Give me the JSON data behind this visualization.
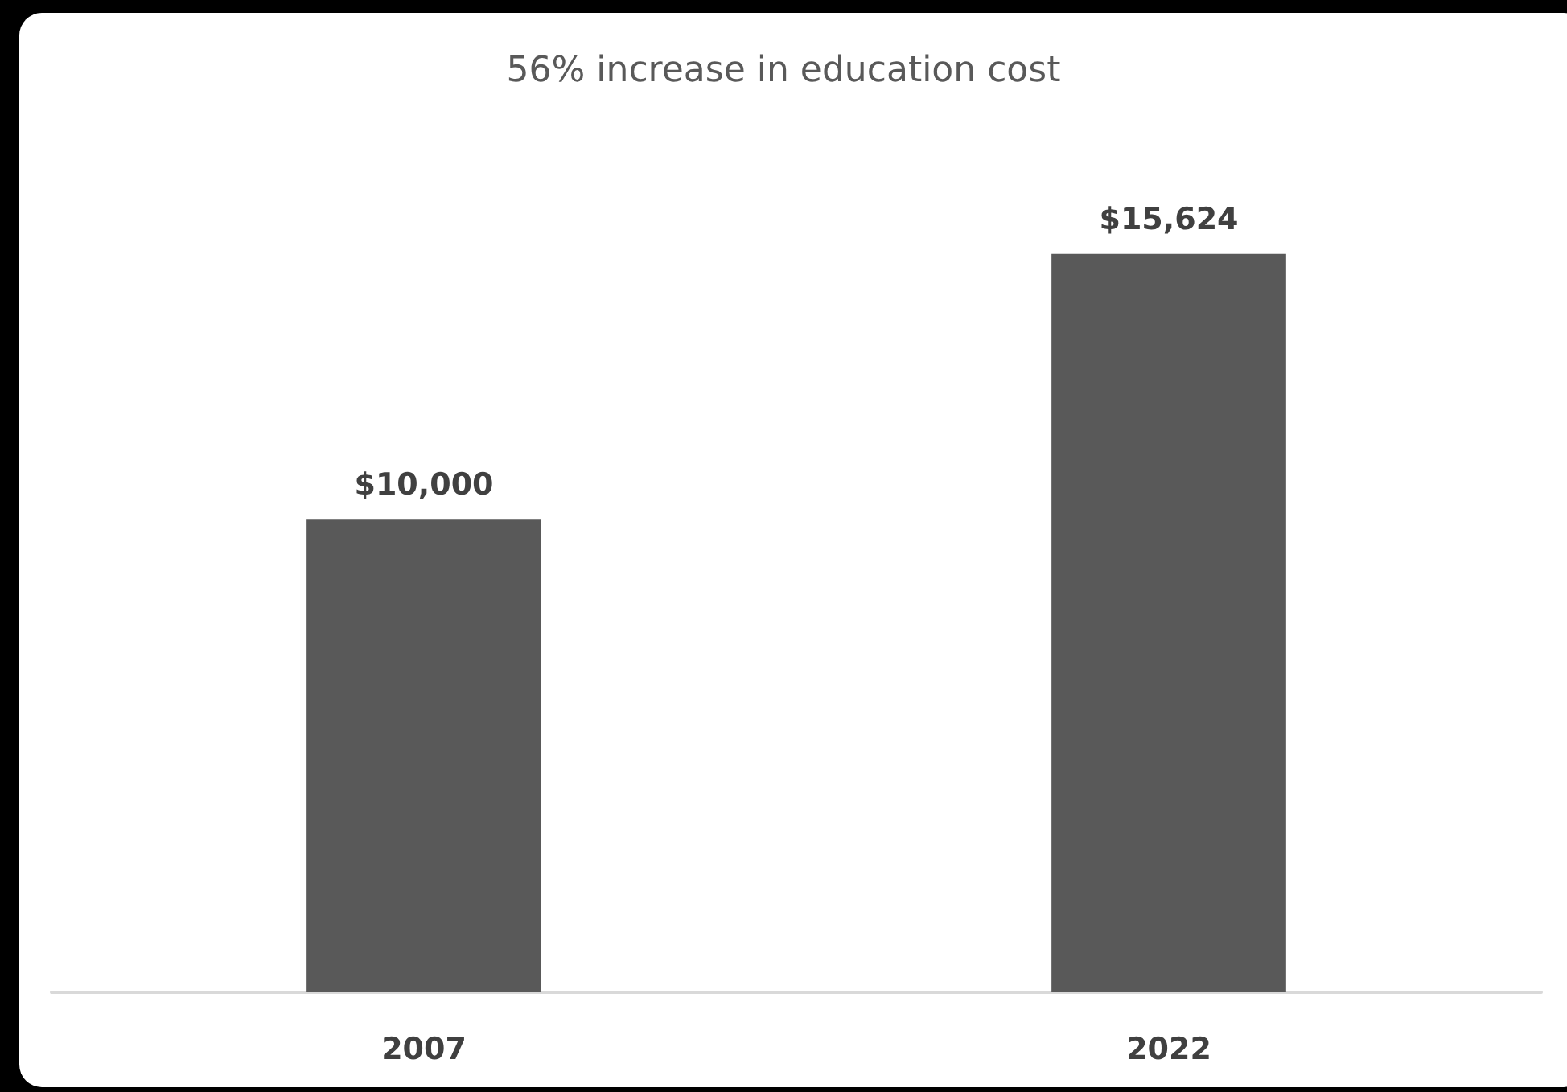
{
  "chart_data": {
    "type": "bar",
    "title": "56% increase in education cost",
    "categories": [
      "2007",
      "2022"
    ],
    "values": [
      10000,
      15624
    ],
    "value_labels": [
      "$10,000",
      "$15,624"
    ],
    "color": "#595959"
  }
}
